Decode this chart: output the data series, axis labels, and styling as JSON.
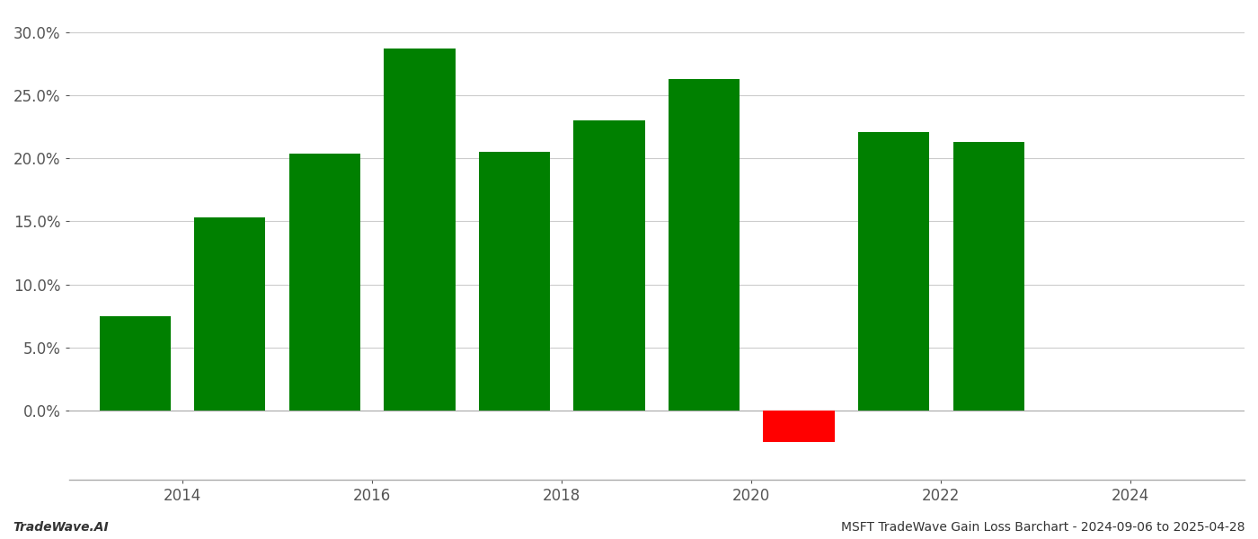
{
  "years": [
    2013.5,
    2014.5,
    2015.5,
    2016.5,
    2017.5,
    2018.5,
    2019.5,
    2020.5,
    2021.5,
    2022.5
  ],
  "values": [
    0.075,
    0.153,
    0.204,
    0.287,
    0.205,
    0.23,
    0.263,
    -0.025,
    0.221,
    0.213
  ],
  "colors": [
    "#008000",
    "#008000",
    "#008000",
    "#008000",
    "#008000",
    "#008000",
    "#008000",
    "#ff0000",
    "#008000",
    "#008000"
  ],
  "ylim_min": -0.055,
  "ylim_max": 0.315,
  "yticks": [
    0.0,
    0.05,
    0.1,
    0.15,
    0.2,
    0.25,
    0.3
  ],
  "xtick_labels": [
    "2014",
    "2016",
    "2018",
    "2020",
    "2022",
    "2024"
  ],
  "xtick_positions": [
    2014,
    2016,
    2018,
    2020,
    2022,
    2024
  ],
  "footer_left": "TradeWave.AI",
  "footer_right": "MSFT TradeWave Gain Loss Barchart - 2024-09-06 to 2025-04-28",
  "bar_width": 0.75,
  "grid_color": "#cccccc",
  "background_color": "#ffffff",
  "axis_label_color": "#555555",
  "footer_fontsize": 10,
  "tick_fontsize": 12
}
